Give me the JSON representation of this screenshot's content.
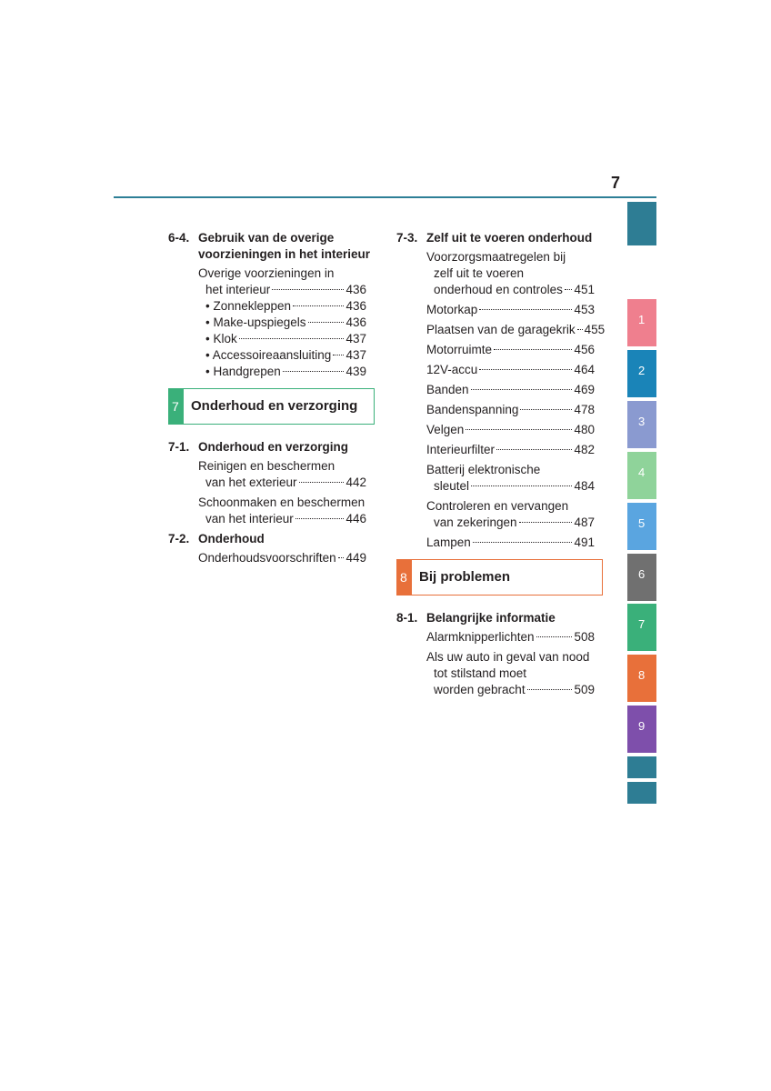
{
  "page_number": "7",
  "left_column": [
    {
      "section": "6-4.",
      "title": [
        "Gebruik van de overige",
        "voorzieningen in het interieur"
      ],
      "entries": [
        {
          "lines": [
            "Overige voorzieningen in",
            "het interieur"
          ],
          "page": 436
        },
        {
          "lines": [
            "• Zonnekleppen"
          ],
          "page": 436
        },
        {
          "lines": [
            "• Make-upspiegels"
          ],
          "page": 436
        },
        {
          "lines": [
            "• Klok"
          ],
          "page": 437
        },
        {
          "lines": [
            "• Accessoireaansluiting"
          ],
          "page": 437
        },
        {
          "lines": [
            "• Handgrepen"
          ],
          "page": 439
        }
      ]
    },
    {
      "chapter": "7",
      "title": "Onderhoud en verzorging"
    },
    {
      "section": "7-1.",
      "title": [
        "Onderhoud en verzorging"
      ],
      "entries": [
        {
          "lines": [
            "Reinigen en beschermen",
            "van het exterieur"
          ],
          "page": 442
        },
        {
          "lines": [
            "Schoonmaken en beschermen",
            "van het interieur"
          ],
          "page": 446
        }
      ]
    },
    {
      "section": "7-2.",
      "title": [
        "Onderhoud"
      ],
      "entries": [
        {
          "lines": [
            "Onderhoudsvoorschriften"
          ],
          "page": 449
        }
      ]
    }
  ],
  "right_column": [
    {
      "section": "7-3.",
      "title": [
        "Zelf uit te voeren onderhoud"
      ],
      "entries": [
        {
          "lines": [
            "Voorzorgsmaatregelen bij",
            "zelf uit te voeren",
            "onderhoud en controles"
          ],
          "page": 451
        },
        {
          "lines": [
            "Motorkap"
          ],
          "page": 453
        },
        {
          "lines": [
            "Plaatsen van de garagekrik"
          ],
          "page": 455
        },
        {
          "lines": [
            "Motorruimte"
          ],
          "page": 456
        },
        {
          "lines": [
            "12V-accu"
          ],
          "page": 464
        },
        {
          "lines": [
            "Banden"
          ],
          "page": 469
        },
        {
          "lines": [
            "Bandenspanning"
          ],
          "page": 478
        },
        {
          "lines": [
            "Velgen"
          ],
          "page": 480
        },
        {
          "lines": [
            "Interieurfilter"
          ],
          "page": 482
        },
        {
          "lines": [
            "Batterij elektronische",
            "sleutel"
          ],
          "page": 484
        },
        {
          "lines": [
            "Controleren en vervangen",
            "van zekeringen"
          ],
          "page": 487
        },
        {
          "lines": [
            "Lampen"
          ],
          "page": 491
        }
      ]
    },
    {
      "chapter": "8",
      "title": "Bij problemen"
    },
    {
      "section": "8-1.",
      "title": [
        "Belangrijke informatie"
      ],
      "entries": [
        {
          "lines": [
            "Alarmknipperlichten"
          ],
          "page": 508
        },
        {
          "lines": [
            "Als uw auto in geval van nood",
            "tot stilstand moet",
            "worden gebracht"
          ],
          "page": 509
        }
      ]
    }
  ],
  "side_tabs": [
    "1",
    "2",
    "3",
    "4",
    "5",
    "6",
    "7",
    "8",
    "9"
  ]
}
